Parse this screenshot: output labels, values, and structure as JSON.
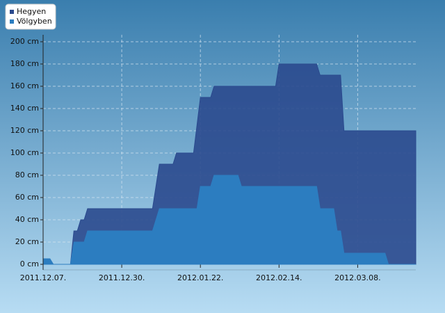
{
  "chart_data": {
    "type": "area",
    "x": [
      "2011-12-07",
      "2011-12-09",
      "2011-12-10",
      "2011-12-15",
      "2011-12-16",
      "2011-12-17",
      "2011-12-18",
      "2011-12-19",
      "2011-12-20",
      "2012-01-08",
      "2012-01-10",
      "2012-01-14",
      "2012-01-15",
      "2012-01-20",
      "2012-01-21",
      "2012-01-22",
      "2012-01-25",
      "2012-01-26",
      "2012-02-02",
      "2012-02-03",
      "2012-02-13",
      "2012-02-14",
      "2012-02-25",
      "2012-02-26",
      "2012-03-01",
      "2012-03-02",
      "2012-03-03",
      "2012-03-04",
      "2012-03-16",
      "2012-03-17",
      "2012-03-25"
    ],
    "series": [
      {
        "name": "Hegyen",
        "color": "#2b4a8e",
        "values": [
          0,
          0,
          0,
          0,
          30,
          30,
          40,
          40,
          50,
          50,
          90,
          90,
          100,
          100,
          125,
          150,
          150,
          160,
          160,
          160,
          160,
          180,
          180,
          170,
          170,
          170,
          170,
          120,
          120,
          120,
          120
        ]
      },
      {
        "name": "Völgyben",
        "color": "#2c7dc0",
        "values": [
          5,
          5,
          0,
          0,
          20,
          20,
          20,
          20,
          30,
          30,
          50,
          50,
          50,
          50,
          50,
          70,
          70,
          80,
          80,
          70,
          70,
          70,
          70,
          50,
          50,
          30,
          30,
          10,
          10,
          0,
          0
        ]
      }
    ],
    "xlim": [
      "2011-12-07",
      "2012-03-25"
    ],
    "xticks": [
      {
        "value": "2011-12-07",
        "label": "2011.12.07."
      },
      {
        "value": "2011-12-30",
        "label": "2011.12.30."
      },
      {
        "value": "2012-01-22",
        "label": "2012.01.22."
      },
      {
        "value": "2012-02-14",
        "label": "2012.02.14."
      },
      {
        "value": "2012-03-08",
        "label": "2012.03.08."
      }
    ],
    "ylim": [
      0,
      200
    ],
    "yticks": [
      {
        "value": 0,
        "label": "0 cm"
      },
      {
        "value": 20,
        "label": "20 cm"
      },
      {
        "value": 40,
        "label": "40 cm"
      },
      {
        "value": 60,
        "label": "60 cm"
      },
      {
        "value": 80,
        "label": "80 cm"
      },
      {
        "value": 100,
        "label": "100 cm"
      },
      {
        "value": 120,
        "label": "120 cm"
      },
      {
        "value": 140,
        "label": "140 cm"
      },
      {
        "value": 160,
        "label": "160 cm"
      },
      {
        "value": 180,
        "label": "180 cm"
      },
      {
        "value": 200,
        "label": "200 cm"
      }
    ],
    "grid": true,
    "legend": "top-left"
  }
}
